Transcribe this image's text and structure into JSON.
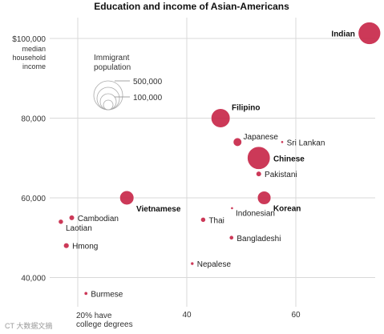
{
  "chart_data": {
    "type": "scatter",
    "title": "Education and income of Asian-Americans",
    "xlabel": "20% have college degrees",
    "ylabel": "$100,000 median household income",
    "xlim": [
      15,
      75
    ],
    "ylim": [
      35000,
      105000
    ],
    "x_ticks": [
      {
        "value": 20,
        "label": ""
      },
      {
        "value": 40,
        "label": "40"
      },
      {
        "value": 60,
        "label": "60"
      }
    ],
    "y_ticks": [
      {
        "value": 100000,
        "label": "$100,000"
      },
      {
        "value": 80000,
        "label": "80,000"
      },
      {
        "value": 60000,
        "label": "60,000"
      },
      {
        "value": 40000,
        "label": "40,000"
      }
    ],
    "y_tick_caption": [
      "median",
      "household",
      "income"
    ],
    "x_tick_caption": [
      "20% have",
      "college degrees"
    ],
    "grid": true,
    "marker_color": "#c8284a",
    "legend": {
      "title_lines": [
        "Immigrant",
        "population"
      ],
      "entries": [
        {
          "label": "500,000",
          "population": 500000
        },
        {
          "label": "100,000",
          "population": 100000
        }
      ]
    },
    "points": [
      {
        "name": "Indian",
        "x": 73.5,
        "y": 101300,
        "population": 1250000,
        "bold": true,
        "label_pos": "left"
      },
      {
        "name": "Filipino",
        "x": 46.2,
        "y": 80000,
        "population": 900000,
        "bold": true,
        "label_pos": "upper-right"
      },
      {
        "name": "Japanese",
        "x": 49.3,
        "y": 74000,
        "population": 180000,
        "bold": false,
        "label_pos": "upper-right"
      },
      {
        "name": "Sri Lankan",
        "x": 57.5,
        "y": 74000,
        "population": 12000,
        "bold": false,
        "label_pos": "right"
      },
      {
        "name": "Chinese",
        "x": 53.2,
        "y": 70000,
        "population": 1300000,
        "bold": true,
        "label_pos": "right"
      },
      {
        "name": "Pakistani",
        "x": 53.2,
        "y": 66000,
        "population": 70000,
        "bold": false,
        "label_pos": "right"
      },
      {
        "name": "Vietnamese",
        "x": 29.0,
        "y": 60000,
        "population": 500000,
        "bold": true,
        "label_pos": "lower-right"
      },
      {
        "name": "Korean",
        "x": 54.2,
        "y": 60000,
        "population": 450000,
        "bold": true,
        "label_pos": "lower-right"
      },
      {
        "name": "Indonesian",
        "x": 48.3,
        "y": 57400,
        "population": 15000,
        "bold": false,
        "label_pos": "lower-right"
      },
      {
        "name": "Thai",
        "x": 43.0,
        "y": 54500,
        "population": 60000,
        "bold": false,
        "label_pos": "right"
      },
      {
        "name": "Cambodian",
        "x": 18.9,
        "y": 55000,
        "population": 70000,
        "bold": false,
        "label_pos": "right"
      },
      {
        "name": "Laotian",
        "x": 16.9,
        "y": 54000,
        "population": 60000,
        "bold": false,
        "label_pos": "lower-right"
      },
      {
        "name": "Bangladeshi",
        "x": 48.2,
        "y": 50000,
        "population": 45000,
        "bold": false,
        "label_pos": "right"
      },
      {
        "name": "Hmong",
        "x": 17.9,
        "y": 48000,
        "population": 75000,
        "bold": false,
        "label_pos": "right"
      },
      {
        "name": "Nepalese",
        "x": 41.0,
        "y": 43500,
        "population": 25000,
        "bold": false,
        "label_pos": "right"
      },
      {
        "name": "Burmese",
        "x": 21.5,
        "y": 36000,
        "population": 30000,
        "bold": false,
        "label_pos": "right"
      }
    ]
  },
  "watermark": "CT 大数据文摘"
}
